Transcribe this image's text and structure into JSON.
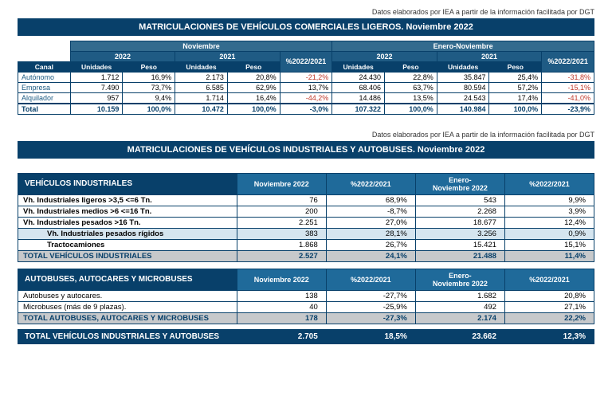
{
  "source_note": "Datos elaborados por IEA a partir de la información facilitada por DGT",
  "table1": {
    "title": "MATRICULACIONES DE VEHÍCULOS COMERCIALES LIGEROS. Noviembre 2022",
    "group_headers": [
      "Noviembre",
      "Enero-Noviembre"
    ],
    "year_headers": [
      "2022",
      "2021",
      "%2022/2021",
      "2022",
      "2021",
      "%2022/2021"
    ],
    "col_headers": [
      "Unidades",
      "Peso",
      "Unidades",
      "Peso",
      "Unidades",
      "Peso",
      "Unidades",
      "Peso"
    ],
    "canal_label": "Canal",
    "rows": [
      {
        "label": "Autónomo",
        "c": [
          "1.712",
          "16,9%",
          "2.173",
          "20,8%",
          "-21,2%",
          "24.430",
          "22,8%",
          "35.847",
          "25,4%",
          "-31,8%"
        ],
        "neg": [
          4,
          9
        ]
      },
      {
        "label": "Empresa",
        "c": [
          "7.490",
          "73,7%",
          "6.585",
          "62,9%",
          "13,7%",
          "68.406",
          "63,7%",
          "80.594",
          "57,2%",
          "-15,1%"
        ],
        "neg": [
          9
        ]
      },
      {
        "label": "Alquilador",
        "c": [
          "957",
          "9,4%",
          "1.714",
          "16,4%",
          "-44,2%",
          "14.486",
          "13,5%",
          "24.543",
          "17,4%",
          "-41,0%"
        ],
        "neg": [
          4,
          9
        ]
      }
    ],
    "total": {
      "label": "Total",
      "c": [
        "10.159",
        "100,0%",
        "10.472",
        "100,0%",
        "-3,0%",
        "107.322",
        "100,0%",
        "140.984",
        "100,0%",
        "-23,9%"
      ],
      "neg": [
        4,
        9
      ]
    }
  },
  "table2": {
    "title": "MATRICULACIONES DE VEHÍCULOS INDUSTRIALES Y AUTOBUSES.  Noviembre 2022",
    "section_a": {
      "header": "VEHÍCULOS INDUSTRIALES",
      "cols": [
        "Noviembre 2022",
        "%2022/2021",
        "Enero-Noviembre 2022",
        "%2022/2021"
      ],
      "rows": [
        {
          "label": "Vh. Industriales ligeros >3,5 <=6 Tn.",
          "c": [
            "76",
            "68,9%",
            "543",
            "9,9%"
          ],
          "bold": true
        },
        {
          "label": "Vh. Industriales medios >6  <=16 Tn.",
          "c": [
            "200",
            "-8,7%",
            "2.268",
            "3,9%"
          ],
          "bold": true
        },
        {
          "label": "Vh. Industriales  pesados >16 Tn.",
          "c": [
            "2.251",
            "27,0%",
            "18.677",
            "12,4%"
          ],
          "bold": true
        },
        {
          "label": "Vh. Industriales pesados rígidos",
          "c": [
            "383",
            "28,1%",
            "3.256",
            "0,9%"
          ],
          "indent": true,
          "shade": true
        },
        {
          "label": "Tractocamiones",
          "c": [
            "1.868",
            "26,7%",
            "15.421",
            "15,1%"
          ],
          "indent": true
        }
      ],
      "total": {
        "label": "TOTAL VEHÍCULOS INDUSTRIALES",
        "c": [
          "2.527",
          "24,1%",
          "21.488",
          "11,4%"
        ]
      }
    },
    "section_b": {
      "header": "AUTOBUSES, AUTOCARES Y MICROBUSES",
      "cols": [
        "Noviembre 2022",
        "%2022/2021",
        "Enero-Noviembre 2022",
        "%2022/2021"
      ],
      "rows": [
        {
          "label": "Autobuses y autocares.",
          "c": [
            "138",
            "-27,7%",
            "1.682",
            "20,8%"
          ]
        },
        {
          "label": "Microbuses (más de 9 plazas).",
          "c": [
            "40",
            "-25,9%",
            "492",
            "27,1%"
          ]
        }
      ],
      "total": {
        "label": "TOTAL AUTOBUSES, AUTOCARES Y MICROBUSES",
        "c": [
          "178",
          "-27,3%",
          "2.174",
          "22,2%"
        ]
      }
    },
    "grand_total": {
      "label": "TOTAL VEHÍCULOS INDUSTRIALES Y AUTOBUSES",
      "c": [
        "2.705",
        "18,5%",
        "23.662",
        "12,3%"
      ]
    }
  }
}
